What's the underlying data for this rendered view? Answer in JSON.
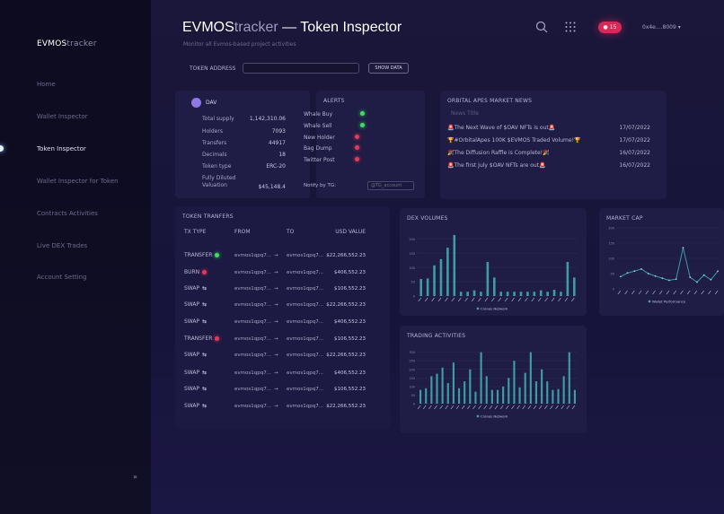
{
  "sidebar": {
    "brand_bold": "EVMOS",
    "brand_light": "tracker",
    "items": [
      {
        "label": "Home"
      },
      {
        "label": "Wallet Inspector"
      },
      {
        "label": "Token Inspector"
      },
      {
        "label": "Wallet Inspector for Token"
      },
      {
        "label": "Contracts Activities"
      },
      {
        "label": "Live DEX Trades"
      },
      {
        "label": "Account Setting"
      }
    ],
    "collapse": "»"
  },
  "header": {
    "title_bold": "EVMOS",
    "title_light": "tracker",
    "title_rest": " — Token Inspector",
    "subtitle": "Monitor all Evmos-based project activities",
    "notif_count": "15",
    "wallet": "0x4e....8009"
  },
  "address": {
    "label": "TOKEN ADDRESS",
    "value": "",
    "button": "SHOW DATA"
  },
  "token": {
    "symbol": "DAV",
    "rows": [
      {
        "label": "Total supply",
        "value": "1,142,310.06"
      },
      {
        "label": "Holders",
        "value": "7093"
      },
      {
        "label": "Transfers",
        "value": "44917"
      },
      {
        "label": "Decimals",
        "value": "18"
      },
      {
        "label": "Token type",
        "value": "ERC-20"
      },
      {
        "label": "Fully Diluted Valuation",
        "value": "$45,148.4"
      }
    ]
  },
  "alerts": {
    "title": "ALERTS",
    "items": [
      {
        "label": "Whale Buy",
        "state": "on"
      },
      {
        "label": "Whale Sell",
        "state": "on"
      },
      {
        "label": "New Holder",
        "state": "off"
      },
      {
        "label": "Bag Dump",
        "state": "off"
      },
      {
        "label": "Twitter Post",
        "state": "off"
      }
    ],
    "notify_label": "Notify by TG:",
    "notify_placeholder": "@TG_account"
  },
  "news": {
    "title": "ORBITAL APES MARKET NEWS",
    "subtitle": "News Title",
    "items": [
      {
        "emoji": "🚨",
        "text": "The Next Wave of $OAV NFTs is out",
        "tail": "🚨",
        "date": "17/07/2022"
      },
      {
        "emoji": "🏆",
        "text": "#OrbitalApes 100K $EVMOS Traded Volume!",
        "tail": "🏆",
        "date": "17/07/2022"
      },
      {
        "emoji": "🎉",
        "text": "The Diffusion Raffle is Complete!",
        "tail": "🎉",
        "date": "16/07/2022"
      },
      {
        "emoji": "🚨",
        "text": "The first July $OAV NFTs are out",
        "tail": "🚨",
        "date": "16/07/2022"
      }
    ]
  },
  "transfers": {
    "title": "TOKEN TRANFERS",
    "headers": {
      "type": "TX TYPE",
      "from": "FROM",
      "to": "TO",
      "value": "USD VALUE"
    },
    "arrow": "→",
    "rows": [
      {
        "type": "TRANSFER",
        "icon": "green",
        "from": "evmos1qpq7...",
        "to": "evmos1qpq7...",
        "value": "$22,266,552.23"
      },
      {
        "type": "BURN",
        "icon": "red",
        "from": "evmos1qpq7...",
        "to": "evmos1qpq7...",
        "value": "$406,552.23"
      },
      {
        "type": "SWAP",
        "icon": "swap",
        "from": "evmos1qpq7...",
        "to": "evmos1qpq7...",
        "value": "$106,552.23"
      },
      {
        "type": "SWAP",
        "icon": "swap",
        "from": "evmos1qpq7...",
        "to": "evmos1qpq7...",
        "value": "$22,266,552.23"
      },
      {
        "type": "SWAP",
        "icon": "swap",
        "from": "evmos1qpq7...",
        "to": "evmos1qpq7...",
        "value": "$406,552.23"
      },
      {
        "type": "TRANSFER",
        "icon": "red",
        "from": "evmos1qpq7...",
        "to": "evmos1qpq7...",
        "value": "$106,552.23"
      },
      {
        "type": "SWAP",
        "icon": "swap",
        "from": "evmos1qpq7...",
        "to": "evmos1qpq7...",
        "value": "$22,266,552.23"
      },
      {
        "type": "SWAP",
        "icon": "swap",
        "from": "evmos1qpq7...",
        "to": "evmos1qpq7...",
        "value": "$406,552.23"
      },
      {
        "type": "SWAP",
        "icon": "swap",
        "from": "evmos1qpq7...",
        "to": "evmos1qpq7...",
        "value": "$106,552.23"
      },
      {
        "type": "SWAP",
        "icon": "swap",
        "from": "evmos1qpq7...",
        "to": "evmos1qpq7...",
        "value": "$22,266,552.23"
      }
    ]
  },
  "colors": {
    "accent": "#3f9ca6",
    "green": "#3ddf5e",
    "red": "#e03b5a"
  },
  "chart_data": [
    {
      "type": "bar",
      "title": "DEX VOLUMES",
      "legend": "Cronos Network",
      "ylim": [
        0,
        240
      ],
      "yticks": [
        0,
        50,
        100,
        150,
        200
      ],
      "values": [
        60,
        62,
        108,
        130,
        170,
        215,
        15,
        15,
        20,
        15,
        120,
        65,
        15,
        15,
        15,
        15,
        15,
        15,
        20,
        15,
        22,
        15,
        120,
        65
      ]
    },
    {
      "type": "line",
      "title": "MARKET CAP",
      "legend": "Wallet Performance",
      "ylim": [
        0,
        200
      ],
      "yticks": [
        0,
        50,
        100,
        150,
        200
      ],
      "values": [
        40,
        52,
        58,
        65,
        50,
        42,
        35,
        28,
        32,
        135,
        38,
        22,
        45,
        30,
        58
      ]
    },
    {
      "type": "bar",
      "title": "TRADING ACTIVITIES",
      "legend": "Cronos Network",
      "ylim": [
        0,
        340
      ],
      "yticks": [
        0,
        50,
        100,
        150,
        200,
        250,
        300
      ],
      "values": [
        80,
        90,
        160,
        175,
        210,
        120,
        240,
        90,
        130,
        200,
        70,
        300,
        160,
        80,
        80,
        100,
        150,
        250,
        95,
        180,
        300,
        130,
        200,
        130,
        80,
        85,
        160,
        300,
        80
      ]
    }
  ]
}
